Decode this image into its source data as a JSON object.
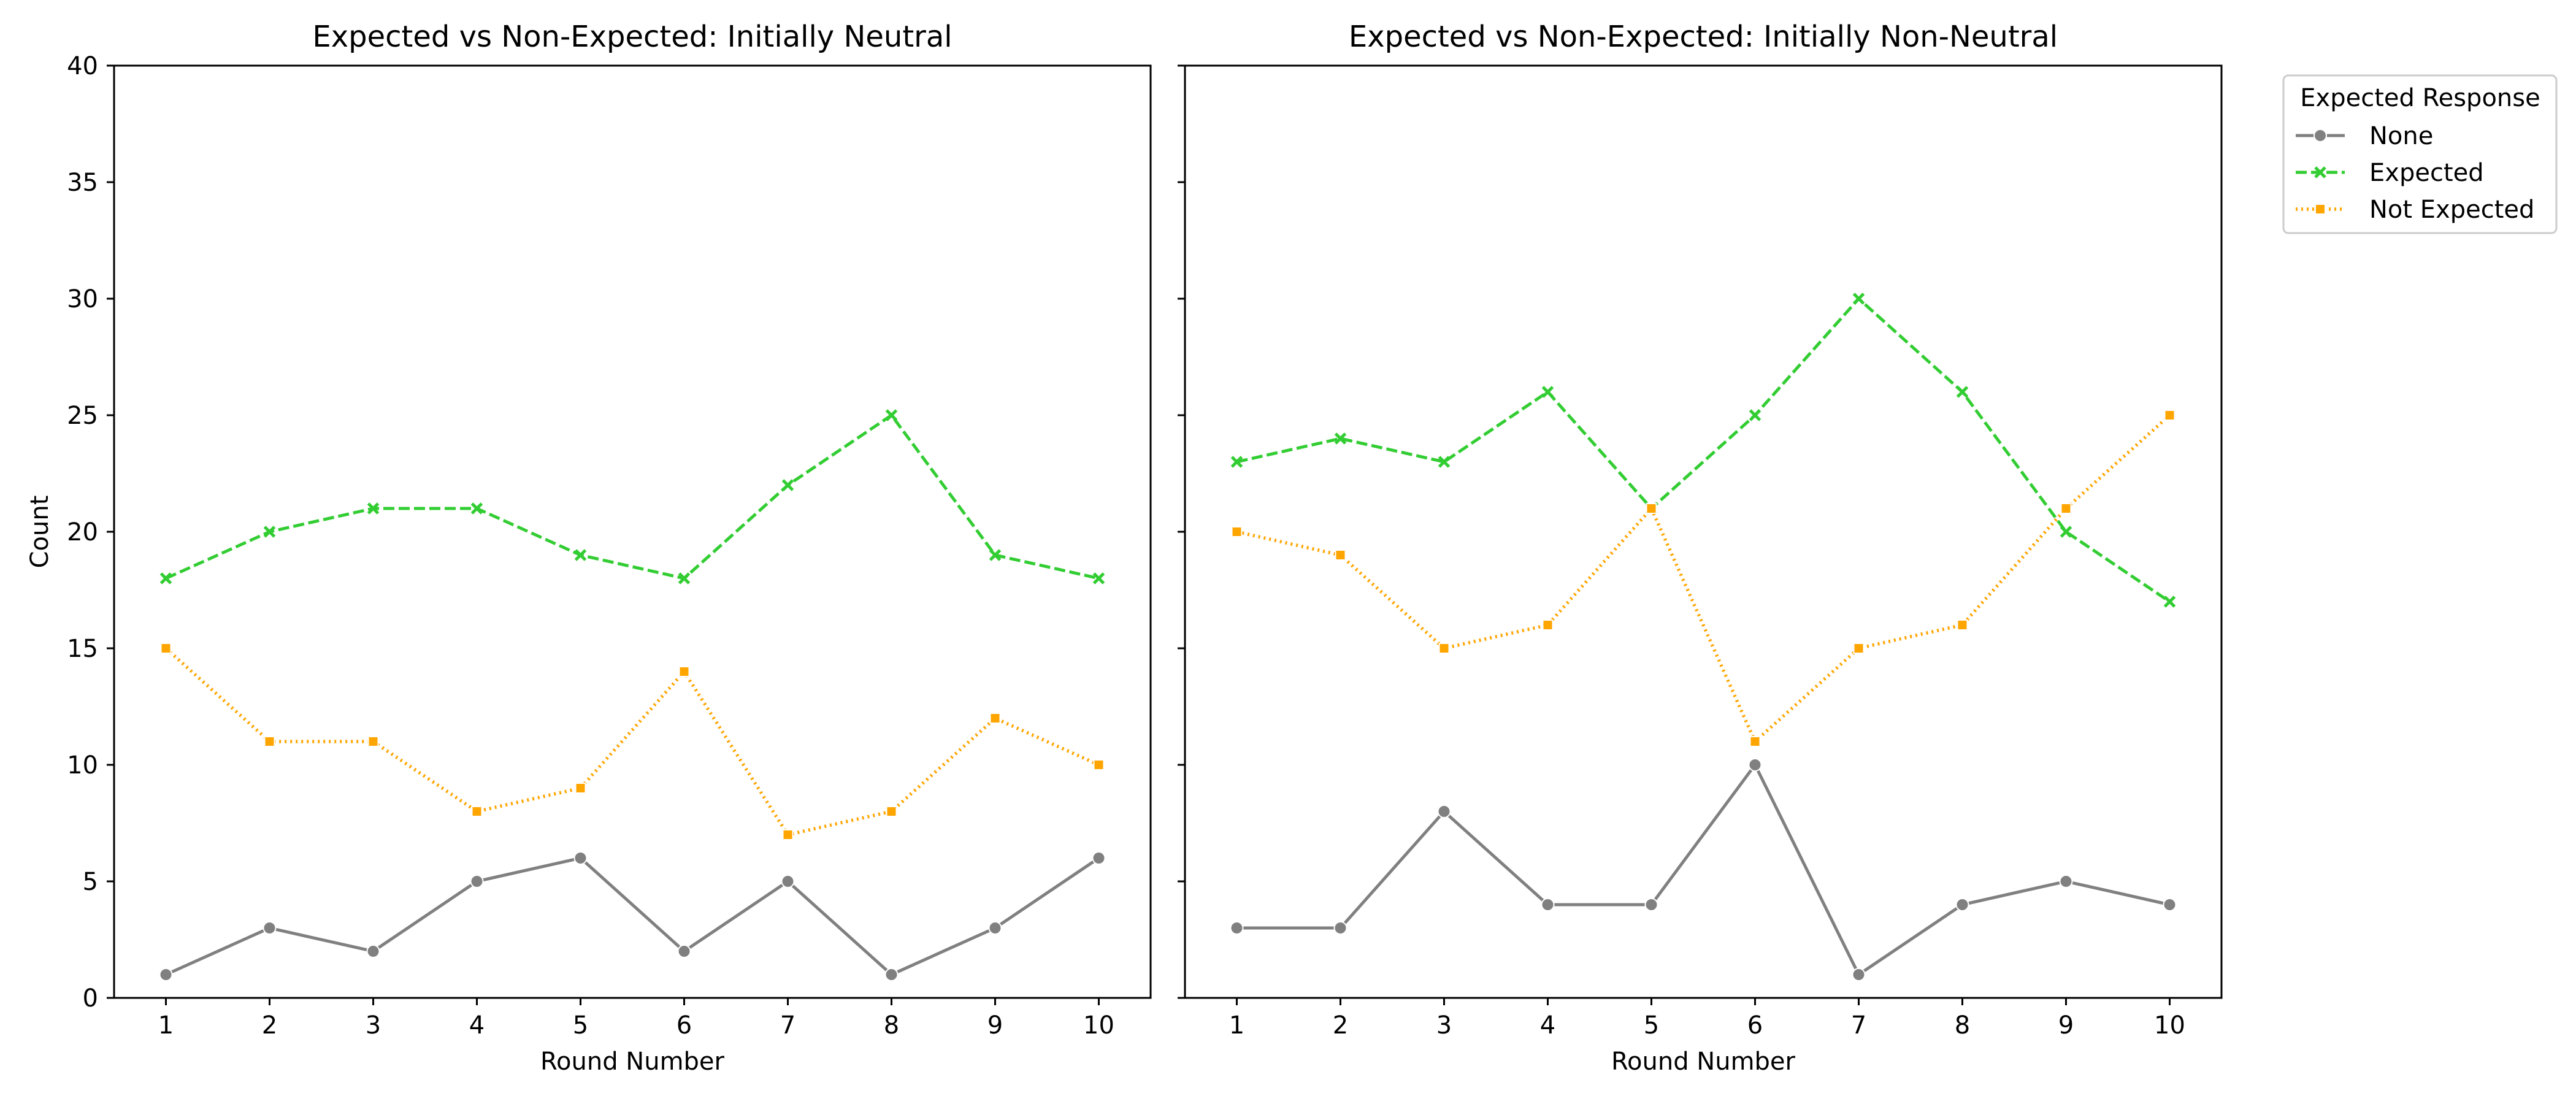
{
  "chart_data": [
    {
      "type": "line",
      "title": "Expected vs Non-Expected: Initially Neutral",
      "xlabel": "Round Number",
      "ylabel": "Count",
      "x": [
        1,
        2,
        3,
        4,
        5,
        6,
        7,
        8,
        9,
        10
      ],
      "xlim": [
        0.5,
        10.5
      ],
      "ylim": [
        0,
        40
      ],
      "yticks": [
        0,
        5,
        10,
        15,
        20,
        25,
        30,
        35,
        40
      ],
      "series": [
        {
          "name": "None",
          "color": "#808080",
          "linestyle": "solid",
          "marker": "circle",
          "values": [
            1,
            3,
            2,
            5,
            6,
            2,
            5,
            1,
            3,
            6
          ]
        },
        {
          "name": "Expected",
          "color": "#32cd32",
          "linestyle": "dashed",
          "marker": "x",
          "values": [
            18,
            20,
            21,
            21,
            19,
            18,
            22,
            25,
            19,
            18
          ]
        },
        {
          "name": "Not Expected",
          "color": "#ffa500",
          "linestyle": "dotted",
          "marker": "square",
          "values": [
            15,
            11,
            11,
            8,
            9,
            14,
            7,
            8,
            12,
            10
          ]
        }
      ]
    },
    {
      "type": "line",
      "title": "Expected vs Non-Expected: Initially Non-Neutral",
      "xlabel": "Round Number",
      "ylabel": "",
      "x": [
        1,
        2,
        3,
        4,
        5,
        6,
        7,
        8,
        9,
        10
      ],
      "xlim": [
        0.5,
        10.5
      ],
      "ylim": [
        0,
        40
      ],
      "yticks": [
        0,
        5,
        10,
        15,
        20,
        25,
        30,
        35,
        40
      ],
      "series": [
        {
          "name": "None",
          "color": "#808080",
          "linestyle": "solid",
          "marker": "circle",
          "values": [
            3,
            3,
            8,
            4,
            4,
            10,
            1,
            4,
            5,
            4
          ]
        },
        {
          "name": "Expected",
          "color": "#32cd32",
          "linestyle": "dashed",
          "marker": "x",
          "values": [
            23,
            24,
            23,
            26,
            21,
            25,
            30,
            26,
            20,
            17
          ]
        },
        {
          "name": "Not Expected",
          "color": "#ffa500",
          "linestyle": "dotted",
          "marker": "square",
          "values": [
            20,
            19,
            15,
            16,
            21,
            11,
            15,
            16,
            21,
            25
          ]
        }
      ]
    }
  ],
  "legend": {
    "title": "Expected Response",
    "placement": "outside-upper-right",
    "entries": [
      "None",
      "Expected",
      "Not Expected"
    ]
  }
}
